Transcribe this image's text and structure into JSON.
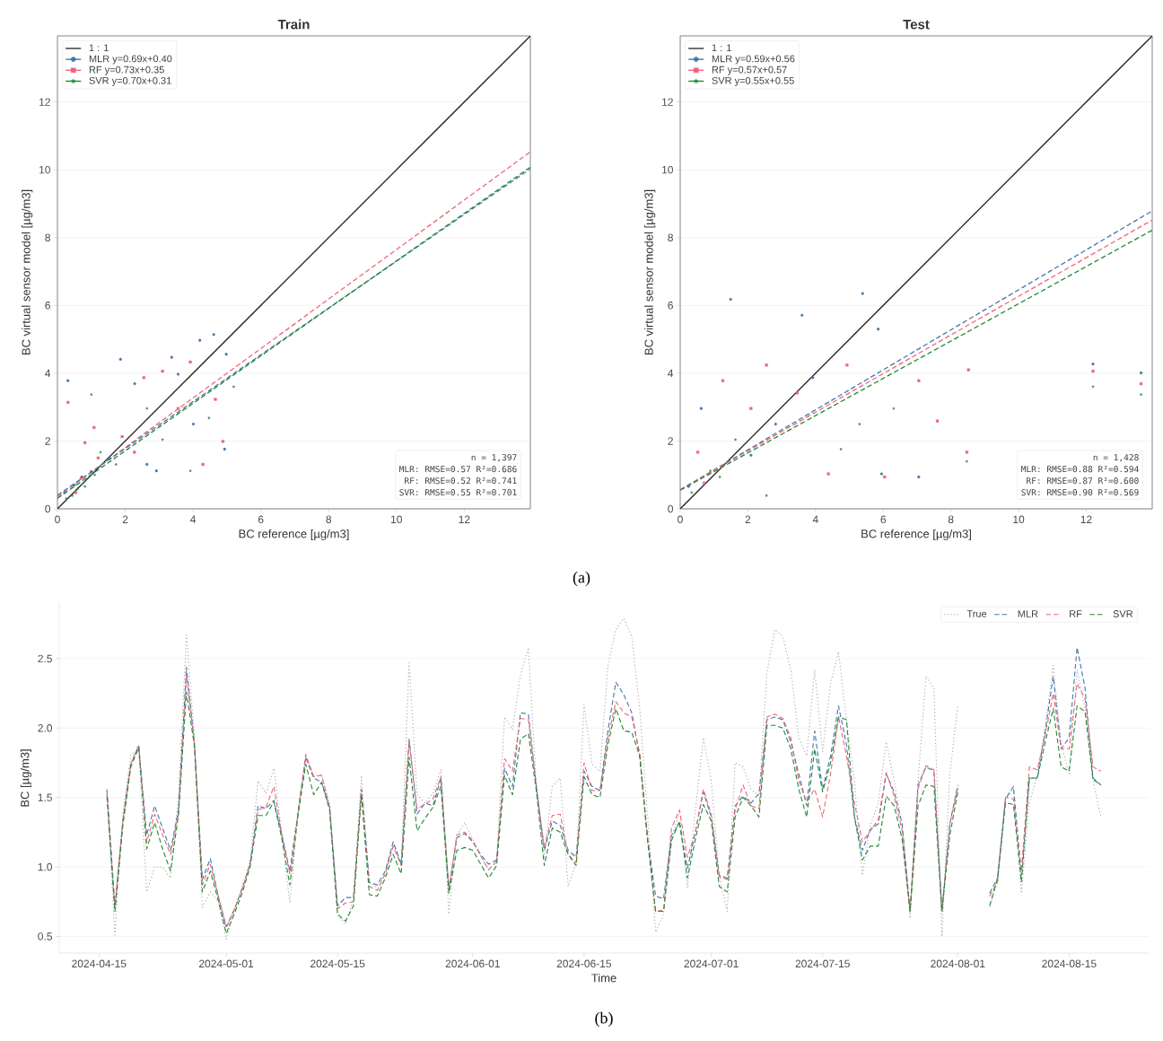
{
  "chart_data": [
    {
      "type": "scatter",
      "title": "Train",
      "xlabel": "BC reference [µg/m3]",
      "ylabel": "BC virtual sensor model [µg/m3]",
      "xlim": [
        0,
        13.95
      ],
      "ylim": [
        0,
        13.95
      ],
      "xticks": [
        0,
        2,
        4,
        6,
        8,
        10,
        12
      ],
      "yticks": [
        0,
        2,
        4,
        6,
        8,
        10,
        12
      ],
      "grid": "y",
      "legend": "top left",
      "series": [
        {
          "name": "1 : 1",
          "type": "line",
          "color": "#222222",
          "line_style": "solid",
          "x": [
            0,
            13.95
          ],
          "values": [
            0,
            13.95
          ]
        },
        {
          "name": "MLR  y=0.69x+0.40",
          "type": "scatter",
          "marker": "circle",
          "color": "#4477aa",
          "x": [
            1.86,
            4.61,
            4.2,
            4.98,
            0.31,
            2.28,
            3.56,
            3.37,
            4.93,
            2.92,
            0.72,
            2.64,
            4.01,
            1.54,
            0.21,
            0.5,
            1.0
          ],
          "values": [
            4.41,
            5.14,
            4.97,
            4.56,
            3.78,
            3.69,
            3.97,
            4.47,
            1.76,
            1.12,
            0.94,
            1.31,
            2.5,
            1.49,
            0.48,
            0.7,
            1.1
          ]
        },
        {
          "name": "RF  y=0.73x+0.35",
          "type": "scatter",
          "marker": "square",
          "color": "#ee6677",
          "x": [
            4.88,
            0.31,
            2.55,
            3.92,
            3.1,
            4.29,
            1.91,
            0.81,
            0.54,
            2.27,
            3.56,
            4.66,
            1.08,
            0.7,
            1.2
          ],
          "values": [
            1.99,
            3.14,
            3.87,
            4.33,
            4.06,
            1.31,
            2.13,
            1.95,
            0.48,
            1.67,
            2.96,
            3.23,
            2.4,
            0.9,
            1.5
          ]
        },
        {
          "name": "SVR  y=0.70x+0.31",
          "type": "scatter",
          "marker": "star",
          "color": "#228833",
          "x": [
            1.0,
            5.2,
            3.92,
            1.27,
            0.44,
            0.81,
            1.73,
            3.1,
            4.47,
            2.64,
            0.26,
            0.6,
            1.1
          ],
          "values": [
            3.37,
            3.6,
            1.12,
            1.67,
            0.39,
            0.66,
            1.31,
            2.04,
            2.68,
            2.96,
            0.3,
            0.6,
            1.0
          ]
        },
        {
          "type": "line",
          "color": "#ee6677",
          "line_style": "dashed",
          "x": [
            0,
            13.95
          ],
          "values": [
            0.35,
            10.53
          ]
        },
        {
          "type": "line",
          "color": "#4477aa",
          "line_style": "dashed",
          "x": [
            0,
            13.95
          ],
          "values": [
            0.4,
            10.03
          ]
        },
        {
          "type": "line",
          "color": "#228833",
          "line_style": "dashed",
          "x": [
            0,
            13.95
          ],
          "values": [
            0.31,
            10.08
          ]
        }
      ],
      "annotations": [
        "n = 1,397",
        "MLR:  RMSE=0.57  R²=0.686",
        "RF:  RMSE=0.52  R²=0.741",
        "SVR:  RMSE=0.55  R²=0.701"
      ]
    },
    {
      "type": "scatter",
      "title": "Test",
      "xlabel": "BC reference [µg/m3]",
      "ylabel": "BC virtual sensor model [µg/m3]",
      "xlim": [
        0,
        13.95
      ],
      "ylim": [
        0,
        13.95
      ],
      "xticks": [
        0,
        2,
        4,
        6,
        8,
        10,
        12
      ],
      "yticks": [
        0,
        2,
        4,
        6,
        8,
        10,
        12
      ],
      "grid": "y",
      "legend": "top left",
      "series": [
        {
          "name": "1 : 1",
          "type": "line",
          "color": "#222222",
          "line_style": "solid",
          "x": [
            0,
            13.95
          ],
          "values": [
            0,
            13.95
          ]
        },
        {
          "name": "MLR  y=0.59x+0.56",
          "type": "scatter",
          "marker": "circle",
          "color": "#4477aa",
          "x": [
            1.49,
            5.39,
            3.6,
            5.85,
            12.2,
            13.62,
            3.92,
            2.82,
            0.62,
            0.25,
            2.09,
            5.95,
            7.05
          ],
          "values": [
            6.18,
            6.35,
            5.71,
            5.3,
            4.27,
            4.01,
            3.87,
            2.5,
            2.96,
            0.66,
            1.58,
            1.03,
            0.94
          ]
        },
        {
          "name": "RF  y=0.57x+0.57",
          "type": "scatter",
          "marker": "square",
          "color": "#ee6677",
          "x": [
            12.2,
            13.62,
            8.52,
            8.47,
            7.6,
            6.04,
            7.05,
            2.55,
            1.26,
            4.93,
            4.38,
            2.09,
            0.52,
            0.71,
            3.46
          ],
          "values": [
            4.06,
            3.69,
            4.1,
            1.67,
            2.59,
            0.94,
            3.78,
            4.24,
            3.78,
            4.24,
            1.03,
            2.96,
            1.67,
            0.76,
            3.42
          ]
        },
        {
          "name": "SVR  y=0.55x+0.55",
          "type": "scatter",
          "marker": "star",
          "color": "#228833",
          "x": [
            12.2,
            13.62,
            8.47,
            4.75,
            2.55,
            1.63,
            0.89,
            0.34,
            1.17,
            5.3,
            6.31
          ],
          "values": [
            3.6,
            3.37,
            1.4,
            1.76,
            0.39,
            2.04,
            1.12,
            0.48,
            0.94,
            2.5,
            2.96
          ]
        },
        {
          "type": "line",
          "color": "#4477aa",
          "line_style": "dashed",
          "x": [
            0,
            13.95
          ],
          "values": [
            0.56,
            8.79
          ]
        },
        {
          "type": "line",
          "color": "#ee6677",
          "line_style": "dashed",
          "x": [
            0,
            13.95
          ],
          "values": [
            0.57,
            8.52
          ]
        },
        {
          "type": "line",
          "color": "#228833",
          "line_style": "dashed",
          "x": [
            0,
            13.95
          ],
          "values": [
            0.55,
            8.22
          ]
        }
      ],
      "annotations": [
        "n = 1,428",
        "MLR:  RMSE=0.88  R²=0.594",
        "RF:  RMSE=0.87  R²=0.600",
        "SVR:  RMSE=0.90  R²=0.569",
        "(a)"
      ]
    },
    {
      "type": "line",
      "xlabel": "Time",
      "ylabel": "BC [µg/m3]",
      "xlim": [
        "2024-04-10",
        "2024-08-25"
      ],
      "ylim": [
        0.38,
        2.9
      ],
      "xticks": [
        "2024-04-15",
        "2024-05-01",
        "2024-05-15",
        "2024-06-01",
        "2024-06-15",
        "2024-07-01",
        "2024-07-15",
        "2024-08-01",
        "2024-08-15"
      ],
      "yticks": [
        0.5,
        {
          "value": 1.0,
          "label": "1.0"
        },
        1.5,
        {
          "value": 2.0,
          "label": "2.0"
        },
        2.5
      ],
      "grid": "y",
      "legend": "top right",
      "x": [
        "2024-04-16",
        "2024-04-17",
        "2024-04-18",
        "2024-04-19",
        "2024-04-20",
        "2024-04-21",
        "2024-04-22",
        "2024-04-23",
        "2024-04-24",
        "2024-04-25",
        "2024-04-26",
        "2024-04-27",
        "2024-04-28",
        "2024-04-29",
        "2024-04-30",
        "2024-05-01",
        "2024-05-02",
        "2024-05-03",
        "2024-05-04",
        "2024-05-05",
        "2024-05-06",
        "2024-05-07",
        "2024-05-08",
        "2024-05-09",
        "2024-05-10",
        "2024-05-11",
        "2024-05-12",
        "2024-05-13",
        "2024-05-14",
        "2024-05-15",
        "2024-05-16",
        "2024-05-17",
        "2024-05-18",
        "2024-05-19",
        "2024-05-20",
        "2024-05-21",
        "2024-05-22",
        "2024-05-23",
        "2024-05-24",
        "2024-05-25",
        "2024-05-26",
        "2024-05-27",
        "2024-05-28",
        "2024-05-29",
        "2024-05-30",
        "2024-05-31",
        "2024-06-01",
        "2024-06-02",
        "2024-06-03",
        "2024-06-04",
        "2024-06-05",
        "2024-06-06",
        "2024-06-07",
        "2024-06-08",
        "2024-06-09",
        "2024-06-10",
        "2024-06-11",
        "2024-06-12",
        "2024-06-13",
        "2024-06-14",
        "2024-06-15",
        "2024-06-16",
        "2024-06-17",
        "2024-06-18",
        "2024-06-19",
        "2024-06-20",
        "2024-06-21",
        "2024-06-22",
        "2024-06-23",
        "2024-06-24",
        "2024-06-25",
        "2024-06-26",
        "2024-06-27",
        "2024-06-28",
        "2024-06-29",
        "2024-06-30",
        "2024-07-01",
        "2024-07-02",
        "2024-07-03",
        "2024-07-04",
        "2024-07-05",
        "2024-07-06",
        "2024-07-07",
        "2024-07-08",
        "2024-07-09",
        "2024-07-10",
        "2024-07-11",
        "2024-07-12",
        "2024-07-13",
        "2024-07-14",
        "2024-07-15",
        "2024-07-16",
        "2024-07-17",
        "2024-07-18",
        "2024-07-19",
        "2024-07-20",
        "2024-07-21",
        "2024-07-22",
        "2024-07-23",
        "2024-07-24",
        "2024-07-25",
        "2024-07-26",
        "2024-07-27",
        "2024-07-28",
        "2024-07-29",
        "2024-07-30",
        "2024-07-31",
        "2024-08-01",
        "2024-08-02",
        "2024-08-03",
        "2024-08-04",
        "2024-08-05",
        "2024-08-06",
        "2024-08-07",
        "2024-08-08",
        "2024-08-09",
        "2024-08-10",
        "2024-08-11",
        "2024-08-12",
        "2024-08-13",
        "2024-08-14",
        "2024-08-15",
        "2024-08-16",
        "2024-08-17",
        "2024-08-18",
        "2024-08-19"
      ],
      "series": [
        {
          "name": "True",
          "color": "#aaaaaa",
          "line_style": "dotted",
          "values": [
            1.52,
            0.51,
            1.38,
            1.81,
            1.84,
            0.82,
            1.0,
            1.0,
            0.92,
            1.52,
            2.67,
            1.94,
            0.71,
            0.82,
            0.75,
            0.48,
            0.69,
            0.86,
            1.04,
            1.62,
            1.53,
            1.71,
            1.23,
            0.74,
            1.38,
            1.79,
            1.66,
            1.66,
            1.46,
            0.65,
            0.59,
            0.77,
            1.66,
            0.89,
            0.85,
            0.95,
            1.18,
            1.02,
            2.47,
            1.52,
            1.46,
            1.53,
            1.7,
            0.66,
            1.23,
            1.32,
            1.2,
            1.08,
            0.98,
            1.04,
            2.08,
            1.99,
            2.38,
            2.58,
            1.58,
            1.07,
            1.58,
            1.64,
            0.86,
            1.03,
            2.17,
            1.74,
            1.69,
            2.45,
            2.71,
            2.79,
            2.66,
            2.14,
            1.36,
            0.53,
            0.66,
            1.19,
            1.41,
            0.85,
            1.41,
            1.93,
            1.62,
            0.94,
            0.68,
            1.75,
            1.72,
            1.56,
            1.51,
            2.4,
            2.71,
            2.66,
            2.42,
            1.93,
            1.8,
            2.42,
            1.83,
            2.32,
            2.55,
            2.06,
            1.62,
            0.94,
            1.3,
            1.46,
            1.9,
            1.62,
            1.29,
            0.63,
            1.62,
            2.37,
            2.29,
            0.5,
            1.67,
            2.16,
            null,
            null,
            null,
            0.71,
            0.89,
            1.49,
            1.56,
            0.81,
            1.46,
            1.66,
            2.01,
            2.45,
            1.88,
            1.67,
            2.42,
            2.14,
            1.62,
            1.36
          ]
        },
        {
          "name": "MLR",
          "color": "#4477aa",
          "line_style": "dashed",
          "values": [
            1.55,
            0.7,
            1.33,
            1.74,
            1.87,
            1.23,
            1.44,
            1.28,
            1.12,
            1.41,
            2.44,
            1.89,
            0.91,
            1.06,
            0.79,
            0.57,
            0.69,
            0.84,
            1.02,
            1.44,
            1.42,
            1.48,
            1.23,
            0.97,
            1.38,
            1.79,
            1.64,
            1.61,
            1.43,
            0.72,
            0.78,
            0.78,
            1.56,
            0.89,
            0.87,
            0.97,
            1.18,
            1.02,
            1.92,
            1.38,
            1.46,
            1.44,
            1.64,
            0.84,
            1.21,
            1.24,
            1.18,
            1.09,
            1.02,
            1.05,
            1.71,
            1.58,
            2.11,
            2.1,
            1.58,
            1.12,
            1.33,
            1.3,
            1.12,
            1.07,
            1.69,
            1.58,
            1.55,
            1.98,
            2.33,
            2.24,
            2.11,
            1.8,
            1.2,
            0.79,
            0.77,
            1.23,
            1.31,
            0.99,
            1.25,
            1.54,
            1.36,
            0.94,
            0.92,
            1.44,
            1.51,
            1.46,
            1.53,
            2.06,
            2.08,
            2.06,
            1.9,
            1.67,
            1.44,
            1.98,
            1.56,
            1.8,
            2.16,
            1.88,
            1.36,
            1.12,
            1.27,
            1.31,
            1.67,
            1.54,
            1.31,
            0.68,
            1.59,
            1.72,
            1.69,
            0.68,
            1.31,
            1.59,
            null,
            null,
            null,
            0.81,
            0.92,
            1.49,
            1.58,
            0.94,
            1.64,
            1.64,
            1.98,
            2.37,
            1.85,
            1.93,
            2.58,
            2.29,
            1.64,
            1.59
          ]
        },
        {
          "name": "RF",
          "color": "#ee6677",
          "line_style": "dashed",
          "values": [
            1.56,
            0.72,
            1.33,
            1.74,
            1.88,
            1.18,
            1.38,
            1.23,
            1.09,
            1.38,
            2.38,
            1.89,
            0.87,
            1.02,
            0.79,
            0.56,
            0.69,
            0.84,
            1.02,
            1.41,
            1.43,
            1.58,
            1.23,
            0.95,
            1.38,
            1.81,
            1.65,
            1.66,
            1.43,
            0.7,
            0.74,
            0.75,
            1.56,
            0.86,
            0.83,
            0.95,
            1.15,
            1.01,
            1.91,
            1.42,
            1.45,
            1.49,
            1.65,
            0.84,
            1.23,
            1.25,
            1.19,
            1.08,
            0.98,
            1.04,
            1.78,
            1.69,
            2.07,
            2.06,
            1.58,
            1.14,
            1.37,
            1.38,
            1.09,
            1.03,
            1.75,
            1.55,
            1.55,
            1.93,
            2.19,
            2.11,
            2.08,
            1.82,
            1.2,
            0.68,
            0.69,
            1.28,
            1.41,
            1.07,
            1.25,
            1.56,
            1.38,
            0.93,
            0.91,
            1.41,
            1.59,
            1.44,
            1.42,
            2.08,
            2.1,
            2.07,
            1.93,
            1.62,
            1.47,
            1.56,
            1.36,
            1.67,
            2.08,
            1.8,
            1.46,
            1.18,
            1.26,
            1.34,
            1.68,
            1.51,
            1.26,
            0.68,
            1.56,
            1.73,
            1.7,
            0.68,
            1.31,
            1.57,
            null,
            null,
            null,
            0.79,
            0.89,
            1.5,
            1.49,
            0.97,
            1.72,
            1.7,
            1.95,
            2.25,
            1.85,
            1.85,
            2.32,
            2.21,
            1.72,
            1.69
          ]
        },
        {
          "name": "SVR",
          "color": "#228833",
          "line_style": "dashed",
          "values": [
            1.51,
            0.68,
            1.3,
            1.72,
            1.86,
            1.13,
            1.32,
            1.13,
            0.97,
            1.38,
            2.26,
            1.87,
            0.82,
            0.97,
            0.76,
            0.52,
            0.66,
            0.81,
            1.0,
            1.37,
            1.37,
            1.47,
            1.2,
            0.87,
            1.36,
            1.74,
            1.52,
            1.61,
            1.41,
            0.66,
            0.61,
            0.72,
            1.52,
            0.8,
            0.79,
            0.92,
            1.09,
            0.95,
            1.79,
            1.26,
            1.35,
            1.43,
            1.58,
            0.81,
            1.12,
            1.14,
            1.12,
            1.02,
            0.92,
            1.01,
            1.66,
            1.52,
            1.92,
            1.96,
            1.55,
            1.01,
            1.28,
            1.25,
            1.09,
            1.01,
            1.65,
            1.52,
            1.5,
            1.88,
            2.14,
            1.98,
            1.97,
            1.8,
            1.18,
            0.68,
            0.68,
            1.19,
            1.33,
            0.92,
            1.2,
            1.45,
            1.33,
            0.86,
            0.82,
            1.36,
            1.5,
            1.44,
            1.36,
            2.02,
            2.02,
            2.0,
            1.85,
            1.56,
            1.36,
            1.85,
            1.54,
            1.75,
            2.08,
            2.06,
            1.36,
            1.05,
            1.15,
            1.15,
            1.51,
            1.44,
            1.2,
            0.68,
            1.44,
            1.59,
            1.58,
            0.68,
            1.23,
            1.54,
            null,
            null,
            null,
            0.72,
            0.92,
            1.46,
            1.45,
            0.89,
            1.64,
            1.64,
            1.9,
            2.14,
            1.72,
            1.69,
            2.16,
            2.12,
            1.63,
            1.59
          ]
        }
      ],
      "annotations": [
        "(b)"
      ]
    }
  ]
}
